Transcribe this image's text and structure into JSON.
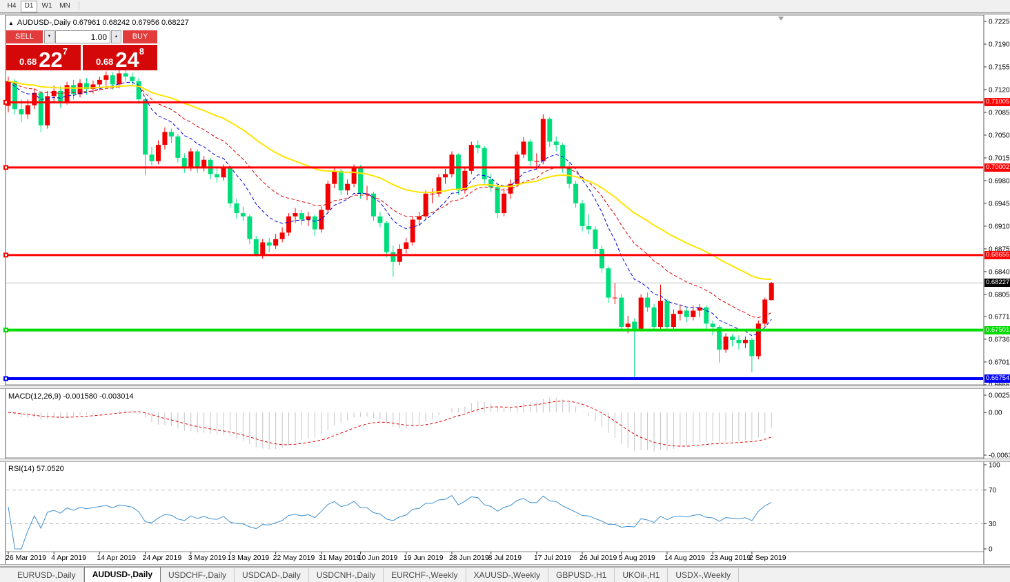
{
  "toolbar": {
    "timeframes": [
      "H4",
      "D1",
      "W1",
      "MN"
    ],
    "active": "D1"
  },
  "icons": {
    "title_arrow": "▲",
    "spin_down": "▼",
    "spin_up": "▲"
  },
  "chart": {
    "title_line": "AUDUSD-,Daily  0.67961 0.68242 0.67956 0.68227",
    "trade_panel": {
      "sell_label": "SELL",
      "buy_label": "BUY",
      "volume": "1.00",
      "sell_price_prefix": "0.68",
      "sell_price_big": "22",
      "sell_price_sup": "7",
      "buy_price_prefix": "0.68",
      "buy_price_big": "24",
      "buy_price_sup": "8"
    }
  },
  "tabs": {
    "active_index": 1,
    "items": [
      "EURUSD-,Daily",
      "AUDUSD-,Daily",
      "USDCHF-,Daily",
      "USDCAD-,Daily",
      "USDCNH-,Daily",
      "EURCHF-,Weekly",
      "XAUUSD-,Weekly",
      "GBPUSD-,H1",
      "UKOil-,H1",
      "USDX-,Weekly"
    ]
  },
  "chart_data": {
    "type": "candlestick",
    "symbol": "AUDUSD-",
    "timeframe": "Daily",
    "current_quote": {
      "open": 0.67961,
      "high": 0.68242,
      "low": 0.67956,
      "close": 0.68227
    },
    "bull_color": "#F20000",
    "bear_color": "#00DE7C",
    "price_axis": {
      "top": 0.72335,
      "bottom": 0.66659,
      "ticks": [
        "0.72250",
        "0.71900",
        "0.71550",
        "0.71200",
        "0.70850",
        "0.70500",
        "0.70150",
        "0.69800",
        "0.69450",
        "0.69100",
        "0.68750",
        "0.68400",
        "0.68050",
        "0.67710",
        "0.67360",
        "0.67010",
        "0.66660"
      ]
    },
    "levels": [
      {
        "price": 0.71005,
        "label": "0.71005",
        "color": "#FF0000",
        "width": 3
      },
      {
        "price": 0.70002,
        "label": "0.70002",
        "color": "#FF0000",
        "width": 3
      },
      {
        "price": 0.68655,
        "label": "0.68655",
        "color": "#FF0000",
        "width": 3
      },
      {
        "price": 0.67501,
        "label": "0.67501",
        "color": "#00DB00",
        "width": 4
      },
      {
        "price": 0.66754,
        "label": "0.66754",
        "color": "#0000FF",
        "width": 4
      }
    ],
    "bid": {
      "price": 0.68227,
      "label": "0.68227",
      "color": "#000000",
      "line_color": "#C0C0C0"
    },
    "moving_averages": [
      {
        "period": 10,
        "color": "#0000DC",
        "style": "dash",
        "width": 1
      },
      {
        "period": 20,
        "color": "#DE0000",
        "style": "dash",
        "width": 1
      },
      {
        "period": 45,
        "color": "#FFE400",
        "style": "solid",
        "width": 2
      }
    ],
    "x_ticks": {
      "indices": [
        0,
        7,
        14,
        21,
        28,
        34,
        41,
        48,
        54,
        61,
        68,
        74,
        81,
        88,
        94,
        101,
        108,
        114
      ],
      "labels": [
        "26 Mar 2019",
        "4 Apr 2019",
        "14 Apr 2019",
        "24 Apr 2019",
        "3 May 2019",
        "13 May 2019",
        "22 May 2019",
        "31 May 2019",
        "10 Jun 2019",
        "19 Jun 2019",
        "28 Jun 2019",
        "8 Jul 2019",
        "17 Jul 2019",
        "26 Jul 2019",
        "5 Aug 2019",
        "14 Aug 2019",
        "23 Aug 2019",
        "2 Sep 2019"
      ]
    },
    "macd": {
      "label": "MACD(12,26,9) -0.001580 -0.003014",
      "fast": 12,
      "slow": 26,
      "signal": 9,
      "main_value": -0.00158,
      "signal_value": -0.003014,
      "axis_ticks": [
        "0.002574",
        "0.00",
        "-0.006326"
      ],
      "axis_values": [
        0.002574,
        0,
        -0.006326
      ],
      "histogram_color": "#C4C4C4",
      "signal_color": "#E00000"
    },
    "rsi": {
      "label": "RSI(14) 57.0520",
      "period": 14,
      "value": 57.052,
      "axis_ticks": [
        "100",
        "70",
        "30",
        "0"
      ],
      "level_lines": [
        70,
        30
      ],
      "color": "#3E8FD0",
      "level_color": "#BDBDBD"
    },
    "candles": [
      [
        0.7095,
        0.714,
        0.7085,
        0.7133
      ],
      [
        0.7133,
        0.7136,
        0.7082,
        0.709
      ],
      [
        0.709,
        0.7105,
        0.707,
        0.7082
      ],
      [
        0.7082,
        0.7105,
        0.7075,
        0.7096
      ],
      [
        0.7096,
        0.7122,
        0.709,
        0.7115
      ],
      [
        0.7115,
        0.7118,
        0.7055,
        0.7065
      ],
      [
        0.7065,
        0.7118,
        0.706,
        0.711
      ],
      [
        0.711,
        0.7126,
        0.71,
        0.7118
      ],
      [
        0.7118,
        0.7125,
        0.7092,
        0.7102
      ],
      [
        0.7102,
        0.7132,
        0.7097,
        0.7127
      ],
      [
        0.7127,
        0.7135,
        0.7105,
        0.7113
      ],
      [
        0.7113,
        0.7136,
        0.7108,
        0.713
      ],
      [
        0.713,
        0.7138,
        0.7112,
        0.7121
      ],
      [
        0.7121,
        0.7134,
        0.7114,
        0.7128
      ],
      [
        0.7128,
        0.714,
        0.712,
        0.7135
      ],
      [
        0.7135,
        0.7148,
        0.7126,
        0.7142
      ],
      [
        0.7142,
        0.7147,
        0.712,
        0.7128
      ],
      [
        0.7128,
        0.715,
        0.7122,
        0.7145
      ],
      [
        0.7145,
        0.7152,
        0.7132,
        0.714
      ],
      [
        0.714,
        0.7146,
        0.7125,
        0.7133
      ],
      [
        0.7133,
        0.7138,
        0.7098,
        0.7105
      ],
      [
        0.7105,
        0.7108,
        0.6988,
        0.702
      ],
      [
        0.702,
        0.7032,
        0.7003,
        0.701
      ],
      [
        0.701,
        0.7042,
        0.7005,
        0.7035
      ],
      [
        0.7035,
        0.7062,
        0.7028,
        0.7055
      ],
      [
        0.7055,
        0.706,
        0.7038,
        0.7048
      ],
      [
        0.7048,
        0.7052,
        0.7008,
        0.7015
      ],
      [
        0.7015,
        0.7022,
        0.6992,
        0.7
      ],
      [
        0.7,
        0.703,
        0.6995,
        0.7025
      ],
      [
        0.7025,
        0.7028,
        0.6992,
        0.7
      ],
      [
        0.7,
        0.7018,
        0.6994,
        0.7012
      ],
      [
        0.7012,
        0.7015,
        0.6982,
        0.699
      ],
      [
        0.699,
        0.7,
        0.6977,
        0.6985
      ],
      [
        0.6985,
        0.7005,
        0.698,
        0.7
      ],
      [
        0.7,
        0.7002,
        0.6938,
        0.6945
      ],
      [
        0.6945,
        0.6952,
        0.6922,
        0.693
      ],
      [
        0.693,
        0.694,
        0.6918,
        0.6925
      ],
      [
        0.6925,
        0.6928,
        0.6882,
        0.689
      ],
      [
        0.689,
        0.6895,
        0.6863,
        0.6866
      ],
      [
        0.6866,
        0.689,
        0.686,
        0.6885
      ],
      [
        0.6885,
        0.6892,
        0.687,
        0.688
      ],
      [
        0.688,
        0.6898,
        0.6875,
        0.689
      ],
      [
        0.689,
        0.6908,
        0.6885,
        0.69
      ],
      [
        0.69,
        0.693,
        0.6895,
        0.6925
      ],
      [
        0.6925,
        0.6938,
        0.6915,
        0.693
      ],
      [
        0.693,
        0.6935,
        0.6912,
        0.692
      ],
      [
        0.692,
        0.6932,
        0.691,
        0.6925
      ],
      [
        0.6925,
        0.6928,
        0.6895,
        0.6905
      ],
      [
        0.6905,
        0.694,
        0.69,
        0.6935
      ],
      [
        0.6935,
        0.698,
        0.693,
        0.6975
      ],
      [
        0.6975,
        0.7,
        0.6968,
        0.6995
      ],
      [
        0.6995,
        0.6998,
        0.6958,
        0.6965
      ],
      [
        0.6965,
        0.6982,
        0.6958,
        0.6975
      ],
      [
        0.6975,
        0.7005,
        0.697,
        0.7
      ],
      [
        0.7,
        0.7004,
        0.6952,
        0.696
      ],
      [
        0.696,
        0.6972,
        0.695,
        0.696
      ],
      [
        0.696,
        0.6963,
        0.6918,
        0.6925
      ],
      [
        0.6925,
        0.6932,
        0.6908,
        0.6915
      ],
      [
        0.6915,
        0.6918,
        0.6862,
        0.687
      ],
      [
        0.687,
        0.688,
        0.6832,
        0.6855
      ],
      [
        0.6855,
        0.6882,
        0.685,
        0.6875
      ],
      [
        0.6875,
        0.6892,
        0.6868,
        0.6885
      ],
      [
        0.6885,
        0.6925,
        0.688,
        0.692
      ],
      [
        0.692,
        0.6932,
        0.691,
        0.6925
      ],
      [
        0.6925,
        0.6965,
        0.692,
        0.696
      ],
      [
        0.696,
        0.6968,
        0.6945,
        0.696
      ],
      [
        0.696,
        0.699,
        0.6955,
        0.6985
      ],
      [
        0.6985,
        0.6998,
        0.6975,
        0.699
      ],
      [
        0.699,
        0.7025,
        0.6985,
        0.702
      ],
      [
        0.702,
        0.7022,
        0.6958,
        0.6965
      ],
      [
        0.6965,
        0.7,
        0.696,
        0.6995
      ],
      [
        0.6995,
        0.704,
        0.699,
        0.7035
      ],
      [
        0.7035,
        0.7042,
        0.7022,
        0.703
      ],
      [
        0.703,
        0.7033,
        0.6975,
        0.6982
      ],
      [
        0.6982,
        0.699,
        0.6962,
        0.697
      ],
      [
        0.697,
        0.6975,
        0.6922,
        0.693
      ],
      [
        0.693,
        0.6968,
        0.6925,
        0.696
      ],
      [
        0.696,
        0.6982,
        0.6952,
        0.6975
      ],
      [
        0.6975,
        0.7025,
        0.697,
        0.702
      ],
      [
        0.702,
        0.7047,
        0.7015,
        0.704
      ],
      [
        0.704,
        0.7044,
        0.7002,
        0.701
      ],
      [
        0.701,
        0.7022,
        0.6998,
        0.701
      ],
      [
        0.701,
        0.7082,
        0.7005,
        0.7075
      ],
      [
        0.7075,
        0.7078,
        0.7032,
        0.704
      ],
      [
        0.704,
        0.7048,
        0.7025,
        0.7035
      ],
      [
        0.7035,
        0.7038,
        0.6992,
        0.7
      ],
      [
        0.7,
        0.7008,
        0.6968,
        0.6975
      ],
      [
        0.6975,
        0.698,
        0.6938,
        0.6945
      ],
      [
        0.6945,
        0.695,
        0.6902,
        0.691
      ],
      [
        0.691,
        0.6928,
        0.6898,
        0.6905
      ],
      [
        0.6905,
        0.691,
        0.6868,
        0.6875
      ],
      [
        0.6875,
        0.688,
        0.6838,
        0.6845
      ],
      [
        0.6845,
        0.6848,
        0.6792,
        0.68
      ],
      [
        0.68,
        0.6822,
        0.679,
        0.68
      ],
      [
        0.68,
        0.6805,
        0.6748,
        0.6755
      ],
      [
        0.6755,
        0.6772,
        0.6745,
        0.676
      ],
      [
        0.6763,
        0.6768,
        0.6677,
        0.6752
      ],
      [
        0.6752,
        0.6805,
        0.6748,
        0.68
      ],
      [
        0.68,
        0.6808,
        0.6778,
        0.6785
      ],
      [
        0.6785,
        0.679,
        0.6748,
        0.6755
      ],
      [
        0.6755,
        0.682,
        0.675,
        0.6795
      ],
      [
        0.6795,
        0.6798,
        0.6748,
        0.6755
      ],
      [
        0.6755,
        0.6782,
        0.675,
        0.6775
      ],
      [
        0.6775,
        0.6788,
        0.6765,
        0.678
      ],
      [
        0.678,
        0.6784,
        0.6762,
        0.677
      ],
      [
        0.677,
        0.6788,
        0.6765,
        0.678
      ],
      [
        0.678,
        0.679,
        0.677,
        0.6785
      ],
      [
        0.6785,
        0.6788,
        0.6752,
        0.676
      ],
      [
        0.676,
        0.6765,
        0.6742,
        0.6755
      ],
      [
        0.6755,
        0.6758,
        0.67,
        0.672
      ],
      [
        0.672,
        0.6745,
        0.6715,
        0.674
      ],
      [
        0.674,
        0.6744,
        0.6725,
        0.6735
      ],
      [
        0.6735,
        0.6742,
        0.672,
        0.673
      ],
      [
        0.673,
        0.674,
        0.6722,
        0.6735
      ],
      [
        0.6735,
        0.6738,
        0.6685,
        0.671
      ],
      [
        0.671,
        0.6765,
        0.6705,
        0.676
      ],
      [
        0.676,
        0.68,
        0.6755,
        0.6797
      ],
      [
        0.67961,
        0.68242,
        0.67956,
        0.68227
      ]
    ]
  }
}
